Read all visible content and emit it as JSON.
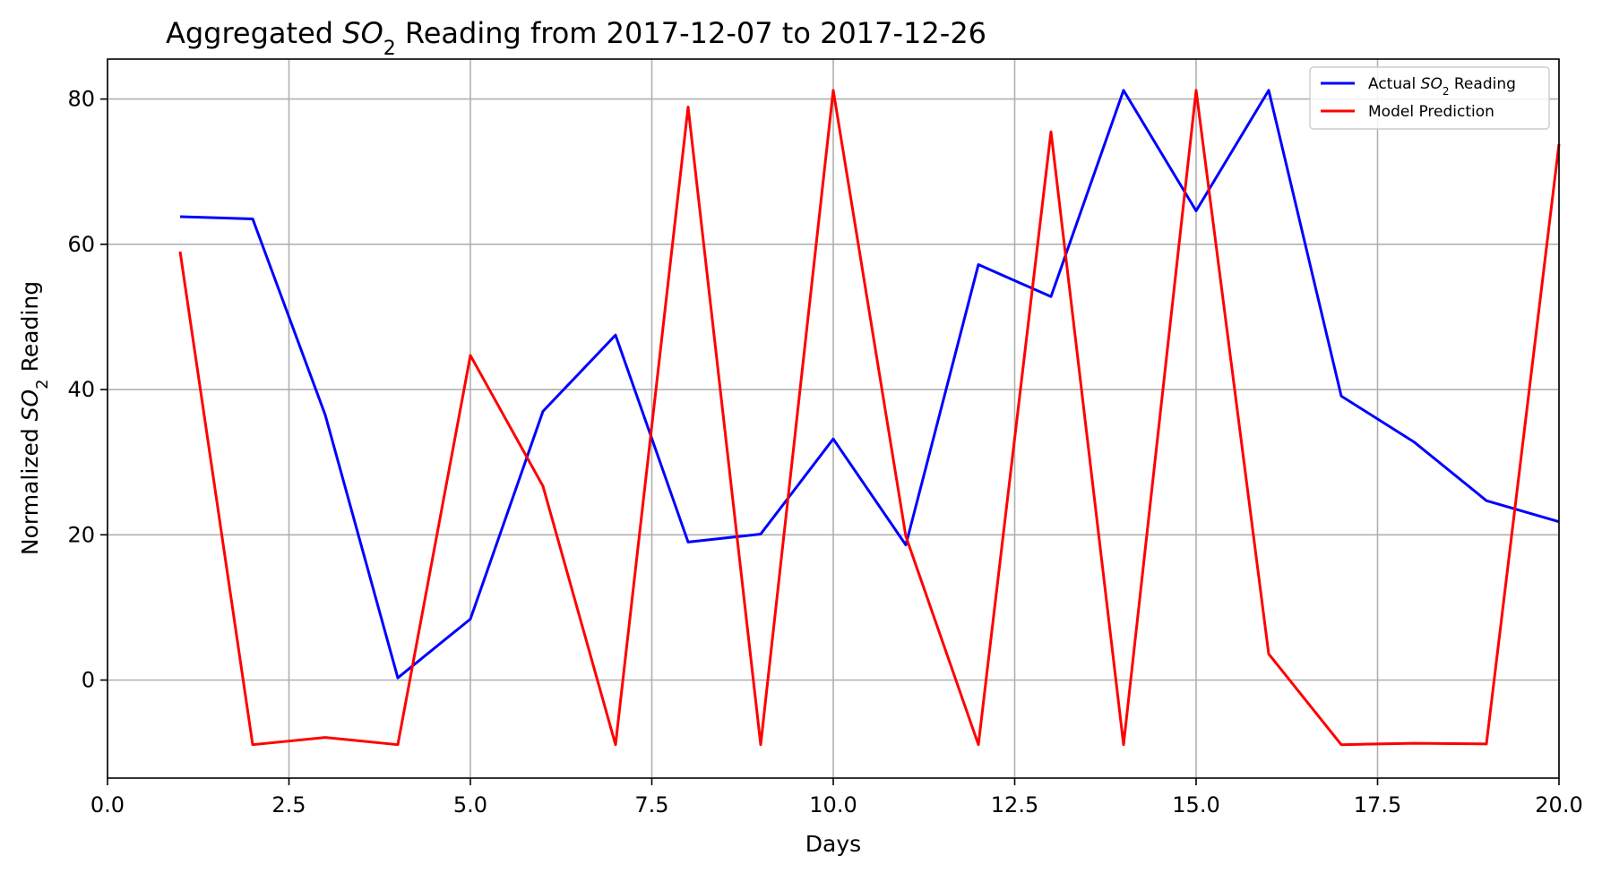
{
  "chart_data": {
    "type": "line",
    "title": {
      "before": "Aggregated ",
      "chem": "SO",
      "sub": "2",
      "after": " Reading from 2017-12-07 to 2017-12-26"
    },
    "xlabel": "Days",
    "ylabel": {
      "before": "Normalized ",
      "chem": "SO",
      "sub": "2",
      "after": " Reading"
    },
    "xlim": [
      0,
      20
    ],
    "ylim": [
      -13.5,
      85.5
    ],
    "xticks": [
      0,
      2.5,
      5,
      7.5,
      10,
      12.5,
      15,
      17.5,
      20
    ],
    "xtick_labels": [
      "0.0",
      "2.5",
      "5.0",
      "7.5",
      "10.0",
      "12.5",
      "15.0",
      "17.5",
      "20.0"
    ],
    "yticks": [
      0,
      20,
      40,
      60,
      80
    ],
    "ytick_labels": [
      "0",
      "20",
      "40",
      "60",
      "80"
    ],
    "grid": true,
    "legend_position": "top-right",
    "x": [
      1,
      2,
      3,
      4,
      5,
      6,
      7,
      8,
      9,
      10,
      11,
      12,
      13,
      14,
      15,
      16,
      17,
      18,
      19,
      20
    ],
    "series": [
      {
        "name": "Actual SO2 Reading",
        "legend": {
          "before": "Actual ",
          "chem": "SO",
          "sub": "2",
          "after": " Reading"
        },
        "color": "#0000ff",
        "values": [
          63.8,
          63.5,
          36.5,
          0.3,
          8.4,
          37.0,
          47.5,
          19.0,
          20.1,
          33.2,
          18.6,
          57.2,
          52.8,
          81.2,
          64.6,
          81.2,
          39.1,
          32.8,
          24.7,
          21.8
        ]
      },
      {
        "name": "Model Prediction",
        "legend": {
          "before": "Model Prediction",
          "chem": "",
          "sub": "",
          "after": ""
        },
        "color": "#ff0000",
        "values": [
          59.0,
          -8.9,
          -7.9,
          -8.9,
          44.7,
          26.7,
          -8.9,
          78.9,
          -8.9,
          81.2,
          19.8,
          -8.9,
          75.5,
          -8.9,
          81.2,
          3.6,
          -8.9,
          -8.7,
          -8.8,
          73.8
        ]
      }
    ]
  }
}
